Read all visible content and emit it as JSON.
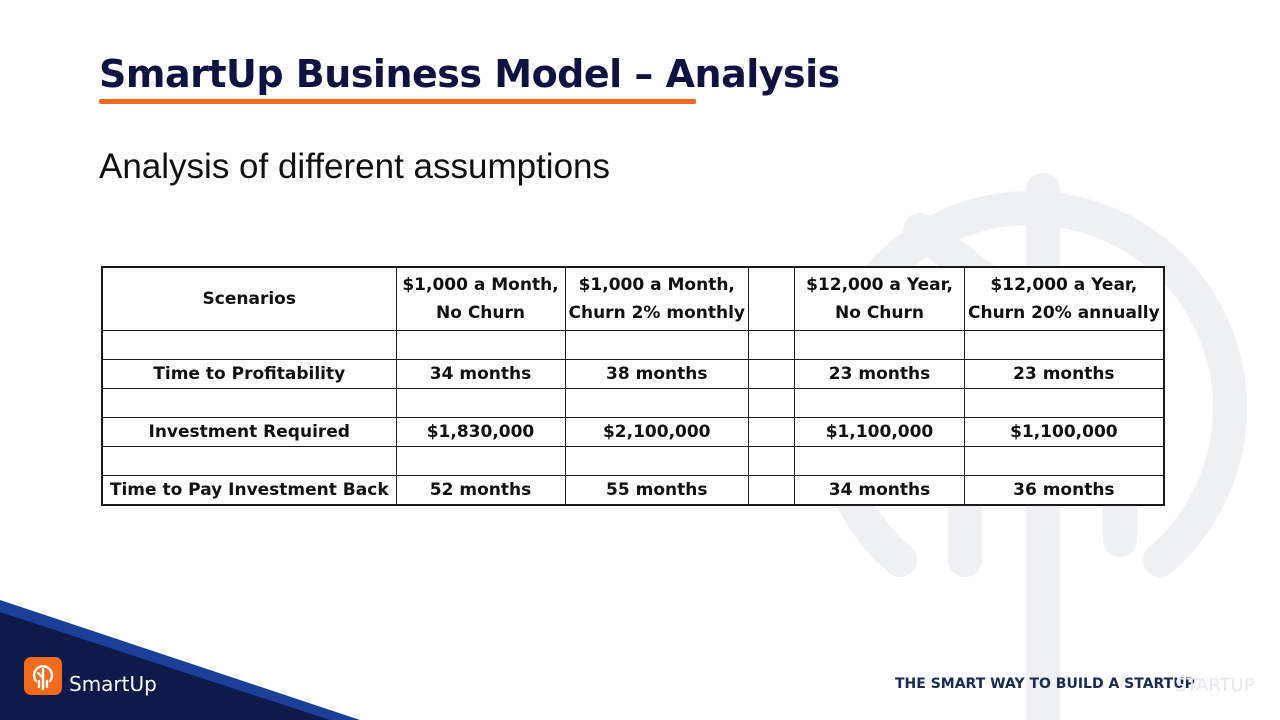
{
  "title": "SmartUp Business Model – Analysis",
  "subtitle": "Analysis of different assumptions",
  "table": {
    "header": {
      "label": "Scenarios",
      "col1_line1": "$1,000 a Month,",
      "col1_line2": "No Churn",
      "col2_line1": "$1,000 a Month,",
      "col2_line2": "Churn 2% monthly",
      "col3_line1": "$12,000 a Year,",
      "col3_line2": "No Churn",
      "col4_line1": "$12,000 a Year,",
      "col4_line2": "Churn 20% annually"
    },
    "rows": [
      {
        "label": "Time to Profitability",
        "values": [
          "34 months",
          "38 months",
          "23 months",
          "23 months"
        ]
      },
      {
        "label": "Investment Required",
        "values": [
          "$1,830,000",
          "$2,100,000",
          "$1,100,000",
          "$1,100,000"
        ]
      },
      {
        "label": "Time to Pay Investment Back",
        "values": [
          "52 months",
          "55 months",
          "34 months",
          "36 months"
        ]
      }
    ]
  },
  "footer": {
    "logo_text": "SmartUp",
    "tagline": "THE SMART WAY TO BUILD A STARTUP",
    "tagline_ghost": "STARTUP"
  },
  "colors": {
    "title": "#0d1240",
    "accent": "#f26b1d",
    "navy": "#0f1a4a",
    "blue_stripe": "#1c3f9a"
  }
}
